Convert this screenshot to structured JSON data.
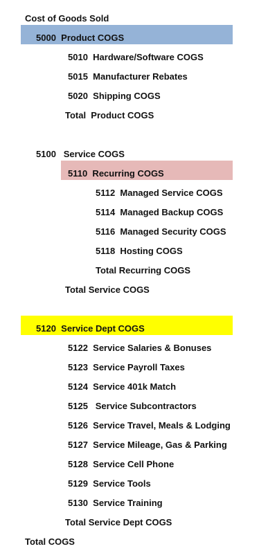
{
  "title": "Cost of Goods Sold",
  "highlight_colors": {
    "product": "#95b3d7",
    "recurring": "#e6b9b8",
    "service_dept": "#ffff00"
  },
  "product": {
    "header": "5000  Product COGS",
    "items": [
      "5010  Hardware/Software COGS",
      "5015  Manufacturer Rebates",
      "5020  Shipping COGS"
    ],
    "total": "Total  Product COGS"
  },
  "service": {
    "header": "5100   Service COGS",
    "recurring": {
      "header": "5110  Recurring COGS",
      "items": [
        "5112  Managed Service COGS",
        "5114  Managed Backup COGS",
        "5116  Managed Security COGS",
        "5118  Hosting COGS"
      ],
      "total": "Total Recurring COGS"
    },
    "total": "Total Service COGS"
  },
  "service_dept": {
    "header": "5120  Service Dept COGS",
    "items": [
      "5122  Service Salaries & Bonuses",
      "5123  Service Payroll Taxes",
      "5124  Service 401k Match",
      "5125   Service Subcontractors",
      "5126  Service Travel, Meals & Lodging",
      "5127  Service Mileage, Gas & Parking",
      "5128  Service Cell Phone",
      "5129  Service Tools",
      "5130  Service Training"
    ],
    "total": "Total Service Dept COGS"
  },
  "grand_total": "Total COGS"
}
